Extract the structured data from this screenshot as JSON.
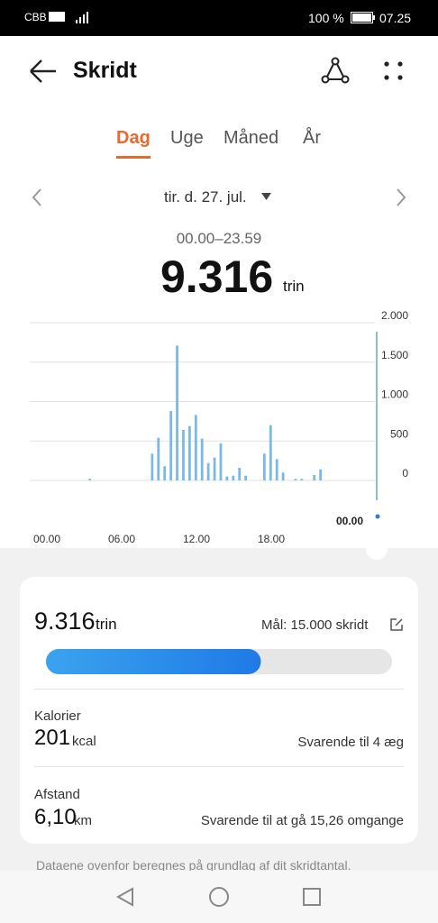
{
  "status_bar": {
    "carrier": "CBB",
    "battery": "100 %",
    "time": "07.25"
  },
  "header": {
    "title": "Skridt"
  },
  "tabs": [
    "Dag",
    "Uge",
    "Måned",
    "År"
  ],
  "date": "tir. d. 27. jul.",
  "time_range": "00.00–23.59",
  "total": {
    "value": "9.316",
    "unit": "trin"
  },
  "chart_data": {
    "type": "bar",
    "color": "#7ab8e8",
    "grid": true,
    "categories": [
      "00.00",
      null,
      null,
      null,
      null,
      null,
      null,
      null,
      null,
      null,
      null,
      null,
      "06.00",
      null,
      null,
      null,
      null,
      null,
      null,
      null,
      null,
      null,
      null,
      null,
      "12.00",
      null,
      null,
      null,
      null,
      null,
      null,
      null,
      null,
      null,
      null,
      null,
      "18.00",
      null,
      null,
      null,
      null,
      null,
      null,
      null,
      null,
      null,
      null,
      null
    ],
    "values": [
      0,
      0,
      0,
      0,
      0,
      0,
      0,
      0,
      0,
      20,
      0,
      0,
      0,
      0,
      0,
      0,
      0,
      0,
      0,
      340,
      540,
      180,
      880,
      1710,
      640,
      690,
      830,
      530,
      220,
      290,
      470,
      50,
      60,
      160,
      60,
      0,
      0,
      340,
      700,
      270,
      100,
      0,
      20,
      20,
      0,
      70,
      140,
      0
    ],
    "ylim": [
      0,
      2000
    ],
    "yticks": [
      0,
      500,
      {
        "value": 1000,
        "label": "1.000"
      },
      {
        "value": 1500,
        "label": "1.500"
      },
      {
        "value": 2000,
        "label": "2.000"
      }
    ],
    "cursor_label": "00.00"
  },
  "summary": {
    "steps": "9.316",
    "unit": "trin",
    "goal": "Mål: 15.000 skridt",
    "progress": {
      "value": 9316,
      "max": 15000
    }
  },
  "calories": {
    "label": "Kalorier",
    "value": "201",
    "unit": "kcal",
    "note": "Svarende til 4 æg"
  },
  "distance": {
    "label": "Afstand",
    "value": "6,10",
    "unit": "km",
    "note": "Svarende til at gå 15,26 omgange"
  },
  "footer": "Dataene ovenfor beregnes på grundlag af dit skridtantal."
}
